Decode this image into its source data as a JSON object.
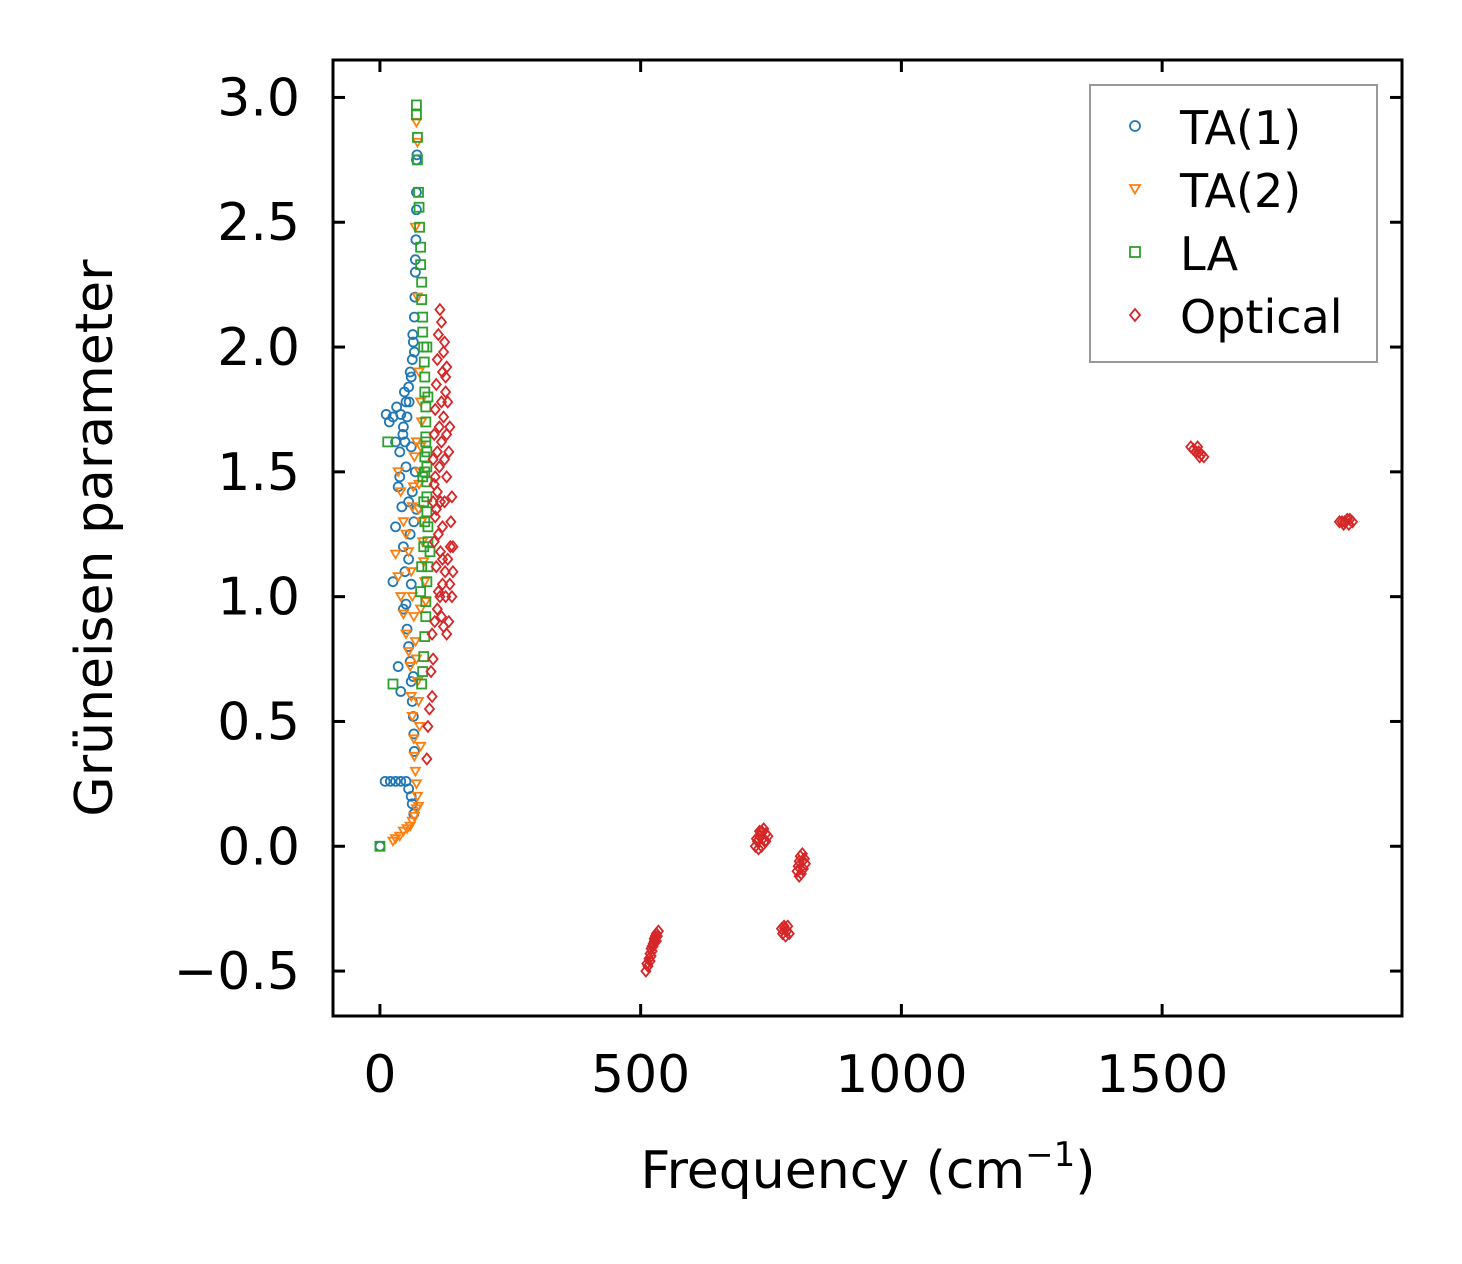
{
  "chart_data": {
    "type": "scatter",
    "title": "",
    "xlabel": "Frequency (cm",
    "xlabel_sup": "−1",
    "xlabel_close": ")",
    "ylabel": "Grüneisen parameter",
    "xlim": [
      -90,
      1960
    ],
    "ylim": [
      -0.68,
      3.15
    ],
    "xticks": [
      0,
      500,
      1000,
      1500
    ],
    "xtick_labels": [
      "0",
      "500",
      "1000",
      "1500"
    ],
    "yticks": [
      -0.5,
      0.0,
      0.5,
      1.0,
      1.5,
      2.0,
      2.5,
      3.0
    ],
    "ytick_labels": [
      "−0.5",
      "0.0",
      "0.5",
      "1.0",
      "1.5",
      "2.0",
      "2.5",
      "3.0"
    ],
    "legend_position": "top-right",
    "series": [
      {
        "name": "TA(1)",
        "marker": "circle",
        "color": "#1f77b4",
        "points": [
          [
            0,
            0.0
          ],
          [
            10,
            0.26
          ],
          [
            20,
            0.26
          ],
          [
            30,
            0.26
          ],
          [
            40,
            0.26
          ],
          [
            50,
            0.26
          ],
          [
            55,
            0.23
          ],
          [
            60,
            0.2
          ],
          [
            62,
            0.17
          ],
          [
            65,
            0.13
          ],
          [
            12,
            1.73
          ],
          [
            18,
            1.7
          ],
          [
            25,
            1.72
          ],
          [
            32,
            1.76
          ],
          [
            40,
            1.73
          ],
          [
            45,
            1.68
          ],
          [
            50,
            1.78
          ],
          [
            55,
            1.84
          ],
          [
            58,
            1.9
          ],
          [
            62,
            1.95
          ],
          [
            64,
            2.02
          ],
          [
            66,
            2.12
          ],
          [
            67,
            2.2
          ],
          [
            68,
            2.3
          ],
          [
            69,
            2.43
          ],
          [
            70,
            2.55
          ],
          [
            70,
            2.62
          ],
          [
            70,
            2.75
          ],
          [
            71,
            2.77
          ],
          [
            68,
            2.35
          ],
          [
            25,
            1.06
          ],
          [
            30,
            1.28
          ],
          [
            35,
            1.44
          ],
          [
            38,
            1.48
          ],
          [
            42,
            1.36
          ],
          [
            45,
            1.2
          ],
          [
            48,
            1.1
          ],
          [
            50,
            0.97
          ],
          [
            52,
            0.87
          ],
          [
            55,
            0.8
          ],
          [
            58,
            0.74
          ],
          [
            60,
            0.66
          ],
          [
            62,
            0.58
          ],
          [
            64,
            0.52
          ],
          [
            65,
            0.45
          ],
          [
            66,
            0.38
          ],
          [
            64,
            0.68
          ],
          [
            60,
            1.05
          ],
          [
            58,
            1.25
          ],
          [
            55,
            1.15
          ],
          [
            35,
            0.72
          ],
          [
            40,
            0.62
          ],
          [
            45,
            0.95
          ],
          [
            50,
            1.52
          ],
          [
            48,
            1.62
          ],
          [
            52,
            1.72
          ],
          [
            56,
            1.78
          ],
          [
            60,
            1.6
          ],
          [
            62,
            1.42
          ],
          [
            65,
            1.3
          ],
          [
            30,
            1.62
          ],
          [
            38,
            1.58
          ],
          [
            44,
            1.65
          ],
          [
            47,
            1.82
          ],
          [
            60,
            1.88
          ],
          [
            63,
            2.05
          ],
          [
            66,
            1.98
          ],
          [
            68,
            1.5
          ],
          [
            70,
            1.35
          ],
          [
            55,
            1.38
          ]
        ]
      },
      {
        "name": "TA(2)",
        "marker": "triangle-down",
        "color": "#ff7f0e",
        "points": [
          [
            25,
            0.02
          ],
          [
            30,
            0.03
          ],
          [
            38,
            0.04
          ],
          [
            45,
            0.06
          ],
          [
            52,
            0.07
          ],
          [
            58,
            0.08
          ],
          [
            62,
            0.1
          ],
          [
            66,
            0.12
          ],
          [
            70,
            0.15
          ],
          [
            70,
            2.9
          ],
          [
            72,
            2.82
          ],
          [
            68,
            2.48
          ],
          [
            72,
            2.2
          ],
          [
            75,
            1.9
          ],
          [
            78,
            1.78
          ],
          [
            80,
            1.7
          ],
          [
            78,
            1.6
          ],
          [
            76,
            1.5
          ],
          [
            75,
            1.45
          ],
          [
            30,
            1.17
          ],
          [
            35,
            1.08
          ],
          [
            40,
            1.0
          ],
          [
            45,
            0.93
          ],
          [
            50,
            0.85
          ],
          [
            55,
            0.78
          ],
          [
            58,
            0.72
          ],
          [
            60,
            0.6
          ],
          [
            62,
            0.52
          ],
          [
            65,
            0.43
          ],
          [
            66,
            0.36
          ],
          [
            68,
            0.3
          ],
          [
            70,
            0.25
          ],
          [
            72,
            0.2
          ],
          [
            74,
            0.16
          ],
          [
            35,
            1.5
          ],
          [
            40,
            1.42
          ],
          [
            45,
            1.3
          ],
          [
            50,
            1.25
          ],
          [
            55,
            1.18
          ],
          [
            60,
            1.1
          ],
          [
            62,
            1.0
          ],
          [
            65,
            0.92
          ],
          [
            68,
            0.82
          ],
          [
            70,
            0.75
          ],
          [
            72,
            0.66
          ],
          [
            74,
            0.58
          ],
          [
            76,
            0.48
          ],
          [
            78,
            0.4
          ],
          [
            80,
            1.3
          ],
          [
            82,
            1.22
          ],
          [
            84,
            1.14
          ],
          [
            86,
            1.06
          ],
          [
            88,
            0.98
          ],
          [
            78,
            0.95
          ],
          [
            74,
            1.35
          ],
          [
            70,
            1.62
          ],
          [
            66,
            1.56
          ],
          [
            64,
            1.44
          ],
          [
            62,
            1.36
          ]
        ]
      },
      {
        "name": "LA",
        "marker": "square",
        "color": "#2ca02c",
        "points": [
          [
            0,
            0.0
          ],
          [
            15,
            1.62
          ],
          [
            25,
            0.65
          ],
          [
            70,
            2.97
          ],
          [
            70,
            2.93
          ],
          [
            72,
            2.84
          ],
          [
            72,
            2.75
          ],
          [
            74,
            2.62
          ],
          [
            75,
            2.56
          ],
          [
            76,
            2.48
          ],
          [
            78,
            2.4
          ],
          [
            78,
            2.33
          ],
          [
            80,
            2.26
          ],
          [
            80,
            2.19
          ],
          [
            82,
            2.12
          ],
          [
            82,
            2.06
          ],
          [
            84,
            2.0
          ],
          [
            85,
            1.94
          ],
          [
            86,
            1.88
          ],
          [
            86,
            1.82
          ],
          [
            88,
            1.76
          ],
          [
            88,
            1.7
          ],
          [
            88,
            1.64
          ],
          [
            90,
            1.58
          ],
          [
            90,
            1.52
          ],
          [
            90,
            1.46
          ],
          [
            90,
            1.4
          ],
          [
            90,
            1.34
          ],
          [
            92,
            1.28
          ],
          [
            92,
            1.22
          ],
          [
            96,
            1.18
          ],
          [
            92,
            1.12
          ],
          [
            90,
            1.06
          ],
          [
            88,
            0.98
          ],
          [
            88,
            0.92
          ],
          [
            86,
            0.84
          ],
          [
            84,
            0.76
          ],
          [
            82,
            0.7
          ],
          [
            80,
            0.65
          ],
          [
            78,
            1.02
          ],
          [
            80,
            1.12
          ],
          [
            84,
            1.2
          ],
          [
            86,
            1.3
          ],
          [
            84,
            1.38
          ],
          [
            82,
            1.48
          ],
          [
            86,
            1.56
          ],
          [
            88,
            1.62
          ],
          [
            86,
            1.5
          ],
          [
            90,
            2.0
          ],
          [
            92,
            1.8
          ]
        ]
      },
      {
        "name": "Optical",
        "marker": "diamond",
        "color": "#d62728",
        "points": [
          [
            100,
            0.85
          ],
          [
            105,
            0.9
          ],
          [
            110,
            0.95
          ],
          [
            115,
            1.0
          ],
          [
            120,
            1.05
          ],
          [
            125,
            1.1
          ],
          [
            130,
            1.15
          ],
          [
            135,
            1.2
          ],
          [
            140,
            1.1
          ],
          [
            138,
            1.0
          ],
          [
            132,
            0.9
          ],
          [
            128,
            0.85
          ],
          [
            122,
            0.88
          ],
          [
            118,
            0.92
          ],
          [
            112,
            1.02
          ],
          [
            108,
            1.12
          ],
          [
            104,
            1.22
          ],
          [
            106,
            1.32
          ],
          [
            110,
            1.42
          ],
          [
            114,
            1.52
          ],
          [
            118,
            1.62
          ],
          [
            122,
            1.72
          ],
          [
            126,
            1.82
          ],
          [
            128,
            1.92
          ],
          [
            124,
            2.02
          ],
          [
            118,
            2.1
          ],
          [
            115,
            2.15
          ],
          [
            112,
            2.05
          ],
          [
            110,
            1.95
          ],
          [
            108,
            1.85
          ],
          [
            106,
            1.75
          ],
          [
            104,
            1.65
          ],
          [
            102,
            1.55
          ],
          [
            104,
            1.45
          ],
          [
            108,
            1.35
          ],
          [
            112,
            1.25
          ],
          [
            116,
            1.18
          ],
          [
            120,
            1.28
          ],
          [
            124,
            1.38
          ],
          [
            128,
            1.48
          ],
          [
            132,
            1.58
          ],
          [
            134,
            1.68
          ],
          [
            130,
            1.78
          ],
          [
            126,
            1.88
          ],
          [
            122,
            1.98
          ],
          [
            118,
            1.78
          ],
          [
            114,
            1.68
          ],
          [
            110,
            1.58
          ],
          [
            106,
            1.48
          ],
          [
            102,
            1.38
          ],
          [
            136,
            1.3
          ],
          [
            138,
            1.4
          ],
          [
            140,
            1.2
          ],
          [
            134,
            1.05
          ],
          [
            126,
            1.0
          ],
          [
            120,
            1.15
          ],
          [
            116,
            1.38
          ],
          [
            124,
            1.55
          ],
          [
            128,
            1.65
          ],
          [
            120,
            1.9
          ],
          [
            100,
            0.6
          ],
          [
            95,
            0.55
          ],
          [
            92,
            0.48
          ],
          [
            90,
            0.35
          ],
          [
            98,
            0.7
          ],
          [
            102,
            0.75
          ],
          [
            510,
            -0.5
          ],
          [
            514,
            -0.48
          ],
          [
            518,
            -0.46
          ],
          [
            520,
            -0.44
          ],
          [
            522,
            -0.42
          ],
          [
            524,
            -0.4
          ],
          [
            526,
            -0.38
          ],
          [
            528,
            -0.36
          ],
          [
            530,
            -0.35
          ],
          [
            534,
            -0.34
          ],
          [
            512,
            -0.47
          ],
          [
            516,
            -0.45
          ],
          [
            520,
            -0.41
          ],
          [
            524,
            -0.39
          ],
          [
            528,
            -0.37
          ],
          [
            532,
            -0.36
          ],
          [
            518,
            -0.43
          ],
          [
            522,
            -0.4
          ],
          [
            526,
            -0.37
          ],
          [
            530,
            -0.38
          ],
          [
            720,
            0.0
          ],
          [
            724,
            0.02
          ],
          [
            728,
            0.04
          ],
          [
            732,
            0.06
          ],
          [
            736,
            0.07
          ],
          [
            740,
            0.05
          ],
          [
            744,
            0.04
          ],
          [
            738,
            0.02
          ],
          [
            732,
            0.0
          ],
          [
            726,
            -0.01
          ],
          [
            728,
            0.06
          ],
          [
            734,
            0.03
          ],
          [
            740,
            0.02
          ],
          [
            722,
            0.03
          ],
          [
            800,
            -0.1
          ],
          [
            802,
            -0.08
          ],
          [
            804,
            -0.06
          ],
          [
            806,
            -0.04
          ],
          [
            810,
            -0.03
          ],
          [
            814,
            -0.05
          ],
          [
            816,
            -0.07
          ],
          [
            812,
            -0.09
          ],
          [
            808,
            -0.11
          ],
          [
            804,
            -0.12
          ],
          [
            806,
            -0.09
          ],
          [
            810,
            -0.06
          ],
          [
            770,
            -0.33
          ],
          [
            775,
            -0.32
          ],
          [
            780,
            -0.34
          ],
          [
            785,
            -0.35
          ],
          [
            778,
            -0.36
          ],
          [
            772,
            -0.35
          ],
          [
            776,
            -0.33
          ],
          [
            782,
            -0.32
          ],
          [
            1555,
            1.6
          ],
          [
            1560,
            1.59
          ],
          [
            1565,
            1.58
          ],
          [
            1570,
            1.58
          ],
          [
            1575,
            1.57
          ],
          [
            1580,
            1.56
          ],
          [
            1568,
            1.6
          ],
          [
            1572,
            1.56
          ],
          [
            1840,
            1.3
          ],
          [
            1845,
            1.3
          ],
          [
            1850,
            1.3
          ],
          [
            1855,
            1.31
          ],
          [
            1860,
            1.31
          ],
          [
            1865,
            1.3
          ],
          [
            1858,
            1.29
          ],
          [
            1848,
            1.29
          ]
        ]
      }
    ]
  }
}
